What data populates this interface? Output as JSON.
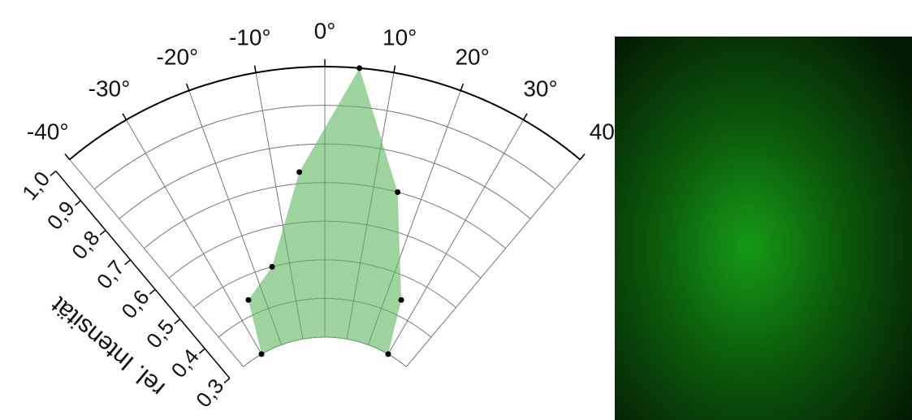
{
  "chart_data": {
    "type": "polar",
    "theta": [
      -30,
      -25,
      -15,
      -5,
      5,
      15,
      25,
      30
    ],
    "series": [
      {
        "color": "#5cb85c",
        "values": [
          0.3,
          0.44,
          0.5,
          0.73,
          1.0,
          0.7,
          0.44,
          0.3
        ]
      }
    ],
    "thetalim": [
      -40,
      40
    ],
    "thetaticks": [
      {
        "value": -40,
        "label": "-40°"
      },
      {
        "value": -30,
        "label": "-30°"
      },
      {
        "value": -20,
        "label": "-20°"
      },
      {
        "value": -10,
        "label": "-10°"
      },
      {
        "value": 0,
        "label": "0°"
      },
      {
        "value": 10,
        "label": "10°"
      },
      {
        "value": 20,
        "label": "20°"
      },
      {
        "value": 30,
        "label": "30°"
      },
      40
    ],
    "rlim": [
      0.3,
      1.0
    ],
    "rticks": [
      {
        "value": 1.0,
        "label": "1,0"
      },
      {
        "value": 0.9,
        "label": "0,9"
      },
      {
        "value": 0.8,
        "label": "0,8"
      },
      {
        "value": 0.7,
        "label": "0,7"
      },
      {
        "value": 0.6,
        "label": "0,6"
      },
      {
        "value": 0.5,
        "label": "0,5"
      },
      {
        "value": 0.4,
        "label": "0,4"
      },
      {
        "value": 0.3,
        "label": "0,3"
      }
    ],
    "rlabel": "rel. Intensität",
    "grid": true
  }
}
